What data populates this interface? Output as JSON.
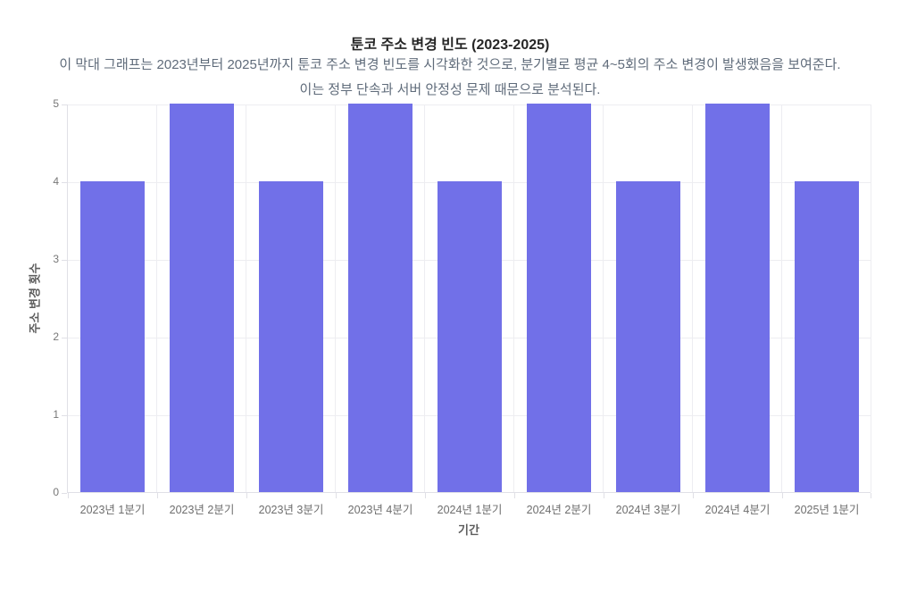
{
  "page": {
    "title": "툰코 주소 변경 빈도 (2023-2025)",
    "description_line1": "이 막대 그래프는 2023년부터 2025년까지 툰코 주소 변경 빈도를 시각화한 것으로, 분기별로 평균 4~5회의 주소 변경이 발생했음을 보여준다.",
    "description_line2": "이는 정부 단속과 서버 안정성 문제 때문으로 분석된다."
  },
  "chart_data": {
    "type": "bar",
    "title": "툰코 주소 변경 빈도 (2023-2025)",
    "categories": [
      "2023년 1분기",
      "2023년 2분기",
      "2023년 3분기",
      "2023년 4분기",
      "2024년 1분기",
      "2024년 2분기",
      "2024년 3분기",
      "2024년 4분기",
      "2025년 1분기"
    ],
    "values": [
      4,
      5,
      4,
      5,
      4,
      5,
      4,
      5,
      4
    ],
    "xlabel": "기간",
    "ylabel": "주소 변경 횟수",
    "ylim": [
      0,
      5
    ],
    "yticks": [
      0,
      1,
      2,
      3,
      4,
      5
    ],
    "grid": true,
    "legend": "none",
    "colors": {
      "bar": "#7170e8",
      "gridline": "#ededf1",
      "axis_line": "#e0e0e6",
      "tick_text": "#777777",
      "axis_title_text": "#5d5d5d",
      "title_text": "#262626",
      "description_text": "#5f6b7a",
      "background": "#ffffff"
    }
  }
}
